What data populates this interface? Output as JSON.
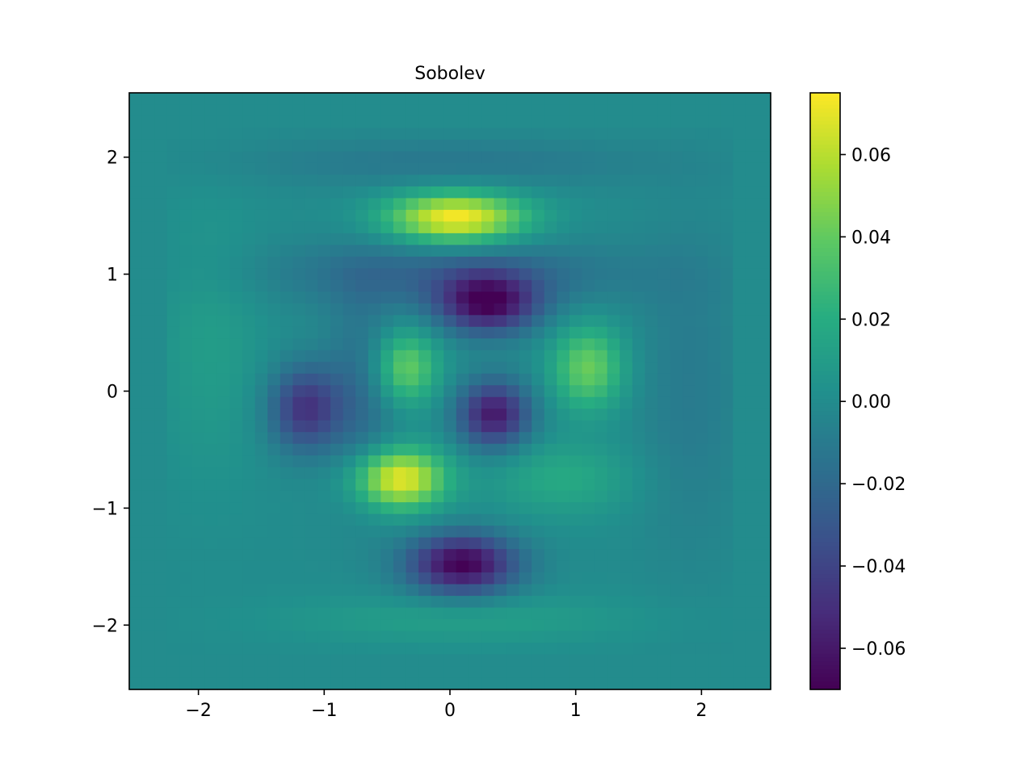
{
  "chart_data": {
    "type": "heatmap",
    "title": "Sobolev",
    "xlabel": "",
    "ylabel": "",
    "xlim": [
      -2.55,
      2.55
    ],
    "ylim": [
      -2.55,
      2.55
    ],
    "xticks": [
      -2,
      -1,
      0,
      1,
      2
    ],
    "yticks": [
      -2,
      -1,
      0,
      1,
      2
    ],
    "xtick_labels": [
      "−2",
      "−1",
      "0",
      "1",
      "2"
    ],
    "ytick_labels": [
      "−2",
      "−1",
      "0",
      "1",
      "2"
    ],
    "grid": false,
    "colormap": "viridis",
    "clim": [
      -0.07,
      0.075
    ],
    "colorbar": {
      "ticks": [
        -0.06,
        -0.04,
        -0.02,
        0.0,
        0.02,
        0.04,
        0.06
      ],
      "tick_labels": [
        "−0.06",
        "−0.04",
        "−0.02",
        "0.00",
        "0.02",
        "0.04",
        "0.06"
      ]
    },
    "grid_resolution": 51,
    "background_value": 0.0,
    "support": [
      -2.2,
      2.2
    ],
    "features": [
      {
        "x": 0.05,
        "y": 1.48,
        "value": 0.075,
        "sx": 0.38,
        "sy": 0.15
      },
      {
        "x": -0.4,
        "y": -0.75,
        "value": 0.072,
        "sx": 0.25,
        "sy": 0.18
      },
      {
        "x": -0.35,
        "y": 0.2,
        "value": 0.042,
        "sx": 0.18,
        "sy": 0.22
      },
      {
        "x": 1.1,
        "y": 0.2,
        "value": 0.042,
        "sx": 0.2,
        "sy": 0.25
      },
      {
        "x": 0.9,
        "y": -0.75,
        "value": 0.018,
        "sx": 0.4,
        "sy": 0.22
      },
      {
        "x": 0.3,
        "y": 0.75,
        "value": -0.065,
        "sx": 0.28,
        "sy": 0.18
      },
      {
        "x": 0.35,
        "y": -0.2,
        "value": -0.06,
        "sx": 0.2,
        "sy": 0.2
      },
      {
        "x": -1.15,
        "y": -0.15,
        "value": -0.048,
        "sx": 0.2,
        "sy": 0.25
      },
      {
        "x": 0.1,
        "y": -1.48,
        "value": -0.07,
        "sx": 0.3,
        "sy": 0.18
      },
      {
        "x": 0.0,
        "y": 1.0,
        "value": -0.022,
        "sx": 1.0,
        "sy": 0.2
      },
      {
        "x": -0.7,
        "y": 0.0,
        "value": -0.018,
        "sx": 0.2,
        "sy": 0.6
      },
      {
        "x": 0.0,
        "y": 1.95,
        "value": -0.012,
        "sx": 1.2,
        "sy": 0.15
      },
      {
        "x": 0.1,
        "y": -1.95,
        "value": 0.012,
        "sx": 1.0,
        "sy": 0.15
      },
      {
        "x": -1.9,
        "y": 0.4,
        "value": 0.01,
        "sx": 0.3,
        "sy": 0.8
      },
      {
        "x": 1.9,
        "y": 0.0,
        "value": -0.01,
        "sx": 0.3,
        "sy": 1.0
      }
    ]
  }
}
